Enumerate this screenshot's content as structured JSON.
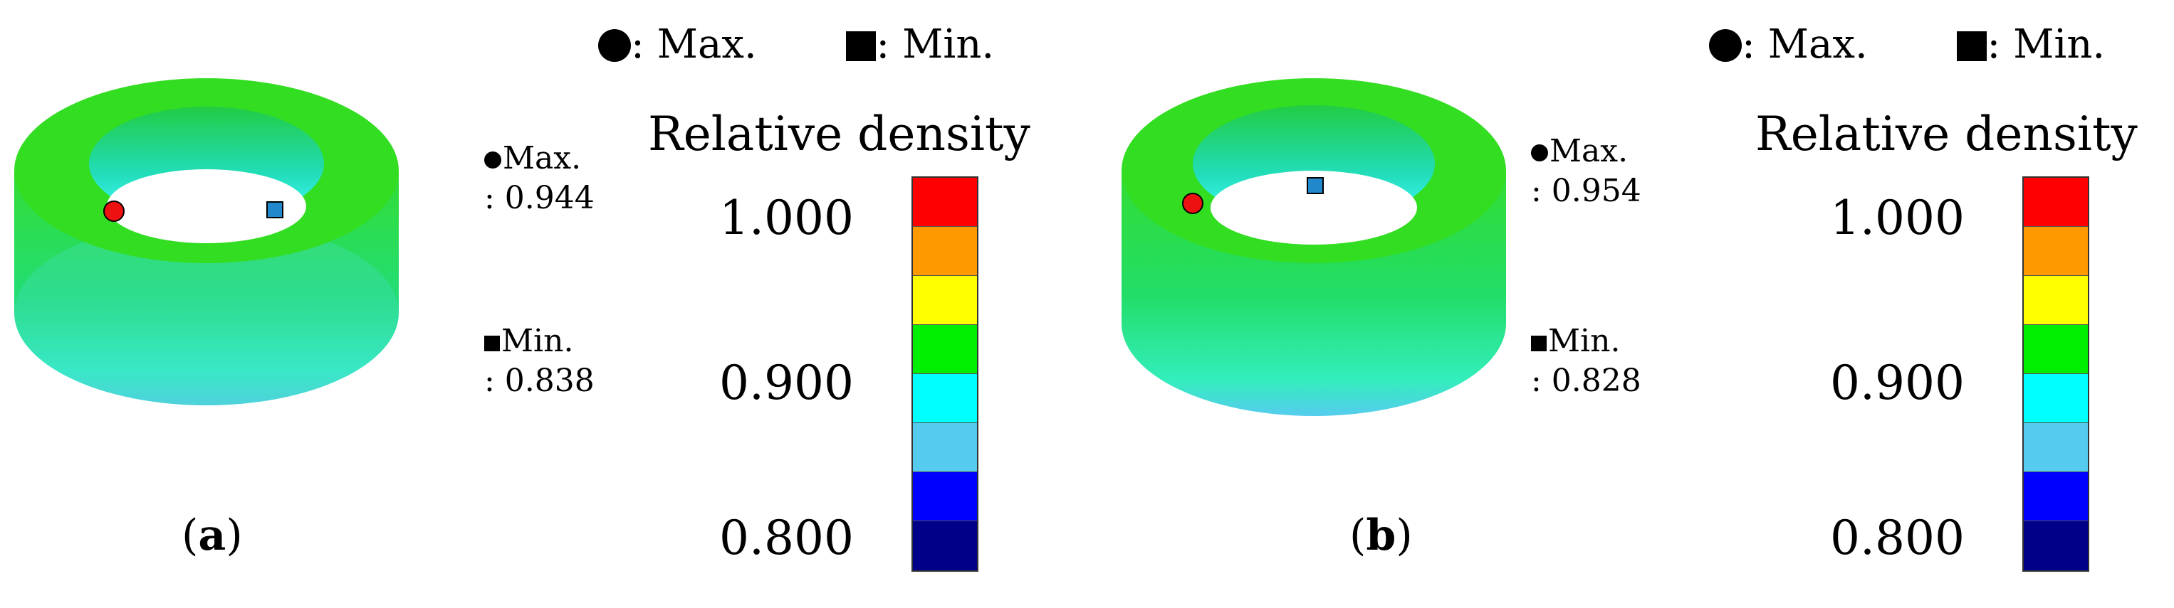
{
  "legend": {
    "max_key": ": Max.",
    "min_key": ": Min."
  },
  "scale": {
    "title": "Relative density",
    "ticks": [
      "1.000",
      "0.900",
      "0.800"
    ],
    "colors": [
      "#ff0000",
      "#ff9900",
      "#ffff00",
      "#00ee00",
      "#00ffff",
      "#55ccee",
      "#0000ff",
      "#000088"
    ]
  },
  "panels": [
    {
      "id": "a",
      "max_label": "Max.",
      "max_value": ": 0.944",
      "min_label": "Min.",
      "min_value": ": 0.838",
      "caption_letter": "a"
    },
    {
      "id": "b",
      "max_label": "Max.",
      "max_value": ": 0.954",
      "min_label": "Min.",
      "min_value": ": 0.828",
      "caption_letter": "b"
    }
  ],
  "markers": {
    "max_color": "#ee1111",
    "min_color": "#2288cc"
  }
}
